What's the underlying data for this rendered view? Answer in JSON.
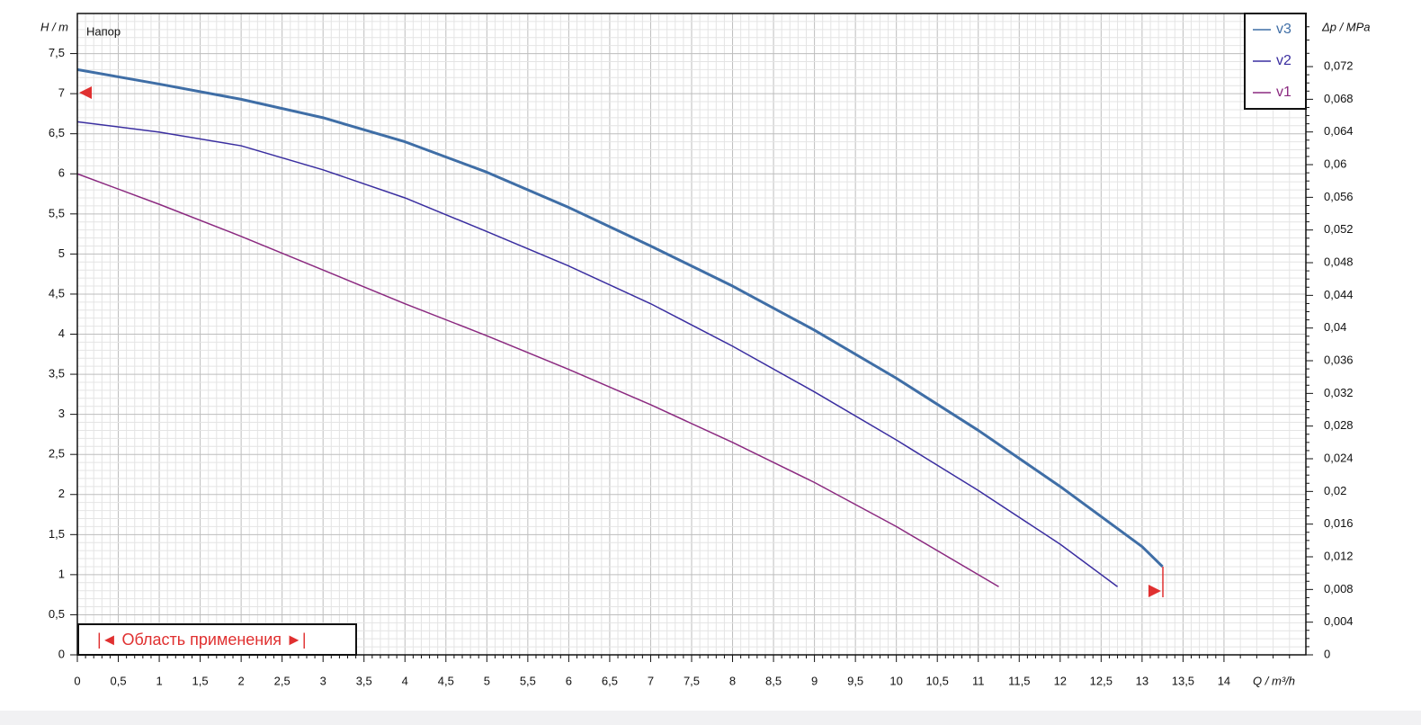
{
  "chart_data": {
    "type": "line",
    "annotation": "Напор",
    "range_label": "|◄ Область применения ►|",
    "xlabel": "Q / m³/h",
    "ylabel": "H / m",
    "y2label": "Δp / MPa",
    "xlim": [
      0,
      15
    ],
    "ylim": [
      0,
      8
    ],
    "y2lim": [
      0,
      0.0785
    ],
    "grid": true,
    "minor_subdivisions": 5,
    "legend": "upper right",
    "xticks": [
      0,
      {
        "value": 0.5,
        "label": "0,5"
      },
      1,
      {
        "value": 1.5,
        "label": "1,5"
      },
      2,
      {
        "value": 2.5,
        "label": "2,5"
      },
      3,
      {
        "value": 3.5,
        "label": "3,5"
      },
      4,
      {
        "value": 4.5,
        "label": "4,5"
      },
      5,
      {
        "value": 5.5,
        "label": "5,5"
      },
      6,
      {
        "value": 6.5,
        "label": "6,5"
      },
      7,
      {
        "value": 7.5,
        "label": "7,5"
      },
      8,
      {
        "value": 8.5,
        "label": "8,5"
      },
      9,
      {
        "value": 9.5,
        "label": "9,5"
      },
      10,
      {
        "value": 10.5,
        "label": "10,5"
      },
      11,
      {
        "value": 11.5,
        "label": "11,5"
      },
      12,
      {
        "value": 12.5,
        "label": "12,5"
      },
      13,
      {
        "value": 13.5,
        "label": "13,5"
      },
      14
    ],
    "yticks": [
      0,
      {
        "value": 0.5,
        "label": "0,5"
      },
      1,
      {
        "value": 1.5,
        "label": "1,5"
      },
      2,
      {
        "value": 2.5,
        "label": "2,5"
      },
      3,
      {
        "value": 3.5,
        "label": "3,5"
      },
      4,
      {
        "value": 4.5,
        "label": "4,5"
      },
      5,
      {
        "value": 5.5,
        "label": "5,5"
      },
      6,
      {
        "value": 6.5,
        "label": "6,5"
      },
      7,
      {
        "value": 7.5,
        "label": "7,5"
      }
    ],
    "y2ticks": [
      0,
      {
        "value": 0.004,
        "label": "0,004"
      },
      {
        "value": 0.008,
        "label": "0,008"
      },
      {
        "value": 0.012,
        "label": "0,012"
      },
      {
        "value": 0.016,
        "label": "0,016"
      },
      {
        "value": 0.02,
        "label": "0,02"
      },
      {
        "value": 0.024,
        "label": "0,024"
      },
      {
        "value": 0.028,
        "label": "0,028"
      },
      {
        "value": 0.032,
        "label": "0,032"
      },
      {
        "value": 0.036,
        "label": "0,036"
      },
      {
        "value": 0.04,
        "label": "0,04"
      },
      {
        "value": 0.044,
        "label": "0,044"
      },
      {
        "value": 0.048,
        "label": "0,048"
      },
      {
        "value": 0.052,
        "label": "0,052"
      },
      {
        "value": 0.056,
        "label": "0,056"
      },
      {
        "value": 0.06,
        "label": "0,06"
      },
      {
        "value": 0.064,
        "label": "0,064"
      },
      {
        "value": 0.068,
        "label": "0,068"
      },
      {
        "value": 0.072,
        "label": "0,072"
      }
    ],
    "series": [
      {
        "name": "v3",
        "color": "#3f6ea6",
        "width": 3,
        "x": [
          0,
          1,
          2,
          3,
          4,
          5,
          6,
          7,
          8,
          9,
          10,
          11,
          12,
          13,
          13.25
        ],
        "values": [
          7.3,
          7.12,
          6.93,
          6.7,
          6.4,
          6.02,
          5.58,
          5.1,
          4.6,
          4.05,
          3.45,
          2.8,
          2.1,
          1.35,
          1.1
        ]
      },
      {
        "name": "v2",
        "color": "#3a2ea0",
        "width": 1.5,
        "x": [
          0,
          1,
          2,
          3,
          4,
          5,
          6,
          7,
          8,
          9,
          10,
          11,
          12,
          12.7
        ],
        "values": [
          6.65,
          6.52,
          6.35,
          6.05,
          5.7,
          5.28,
          4.85,
          4.38,
          3.85,
          3.28,
          2.68,
          2.05,
          1.38,
          0.85
        ]
      },
      {
        "name": "v1",
        "color": "#8b2a80",
        "width": 1.5,
        "x": [
          0,
          1,
          2,
          3,
          4,
          5,
          6,
          7,
          8,
          9,
          10,
          11,
          11.25
        ],
        "values": [
          6.0,
          5.62,
          5.22,
          4.8,
          4.38,
          3.98,
          3.56,
          3.12,
          2.65,
          2.15,
          1.6,
          1.0,
          0.85
        ]
      }
    ]
  }
}
